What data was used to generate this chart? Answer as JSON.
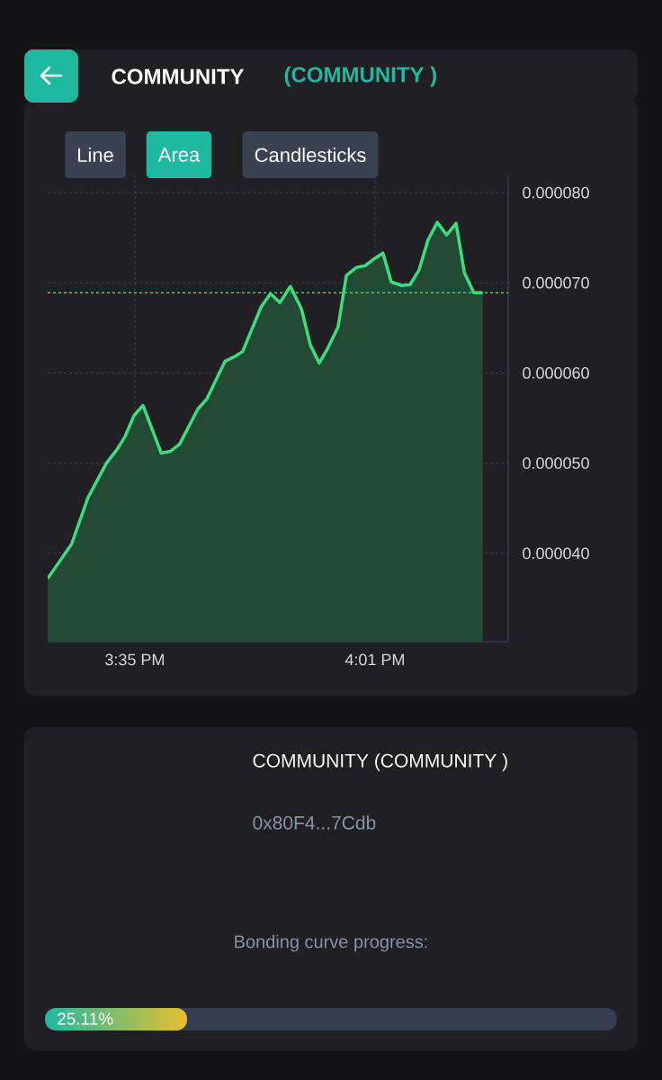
{
  "chart_data": {
    "type": "area",
    "x": [
      15.426,
      15.469,
      15.499,
      15.532,
      15.551,
      15.566,
      15.582,
      15.598,
      15.631,
      15.647,
      15.664,
      15.697,
      15.713,
      15.746,
      15.763,
      15.778,
      15.811,
      15.828,
      15.845,
      15.864,
      15.884,
      15.9,
      15.916,
      15.932,
      15.95,
      15.965,
      15.983,
      15.999,
      16.016,
      16.031,
      16.046,
      16.065,
      16.08,
      16.096,
      16.112,
      16.129,
      16.146,
      16.163,
      16.178,
      16.195,
      16.211
    ],
    "series": [
      {
        "color": "#3ddc7e",
        "values": [
          3.72e-05,
          4.1e-05,
          4.62e-05,
          5e-05,
          5.15e-05,
          5.3e-05,
          5.53e-05,
          5.64e-05,
          5.11e-05,
          5.13e-05,
          5.21e-05,
          5.6e-05,
          5.71e-05,
          6.13e-05,
          6.18e-05,
          6.24e-05,
          6.73e-05,
          6.88e-05,
          6.78e-05,
          6.96e-05,
          6.71e-05,
          6.31e-05,
          6.11e-05,
          6.28e-05,
          6.51e-05,
          7.08e-05,
          7.17e-05,
          7.19e-05,
          7.27e-05,
          7.33e-05,
          7.01e-05,
          6.97e-05,
          6.98e-05,
          7.14e-05,
          7.47e-05,
          7.67e-05,
          7.53e-05,
          7.66e-05,
          7.11e-05,
          6.89e-05,
          6.89e-05
        ]
      }
    ],
    "xlim": [
      15.426,
      16.257
    ],
    "ylim": [
      3.02e-05,
      8.19e-05
    ],
    "xticks": [
      {
        "value": 15.5833,
        "label": "3:35 PM"
      },
      {
        "value": 16.0167,
        "label": "4:01 PM"
      }
    ],
    "yticks": [
      {
        "value": 4e-05,
        "label": "0.000040"
      },
      {
        "value": 5e-05,
        "label": "0.000050"
      },
      {
        "value": 6e-05,
        "label": "0.000060"
      },
      {
        "value": 7e-05,
        "label": "0.000070"
      },
      {
        "value": 8e-05,
        "label": "0.000080"
      }
    ],
    "grid": true,
    "ref_lines": [
      {
        "axis": "y",
        "value": 6.89e-05,
        "color": "#3ddc7e",
        "line_style": "dashed"
      }
    ],
    "annotations": [
      "COMMUNITY",
      "(COMMUNITY )",
      "Line",
      "Area",
      "Candlesticks",
      "COMMUNITY (COMMUNITY )",
      "0x80F4...7Cdb",
      "Bonding curve progress:",
      "25.11%"
    ]
  }
}
